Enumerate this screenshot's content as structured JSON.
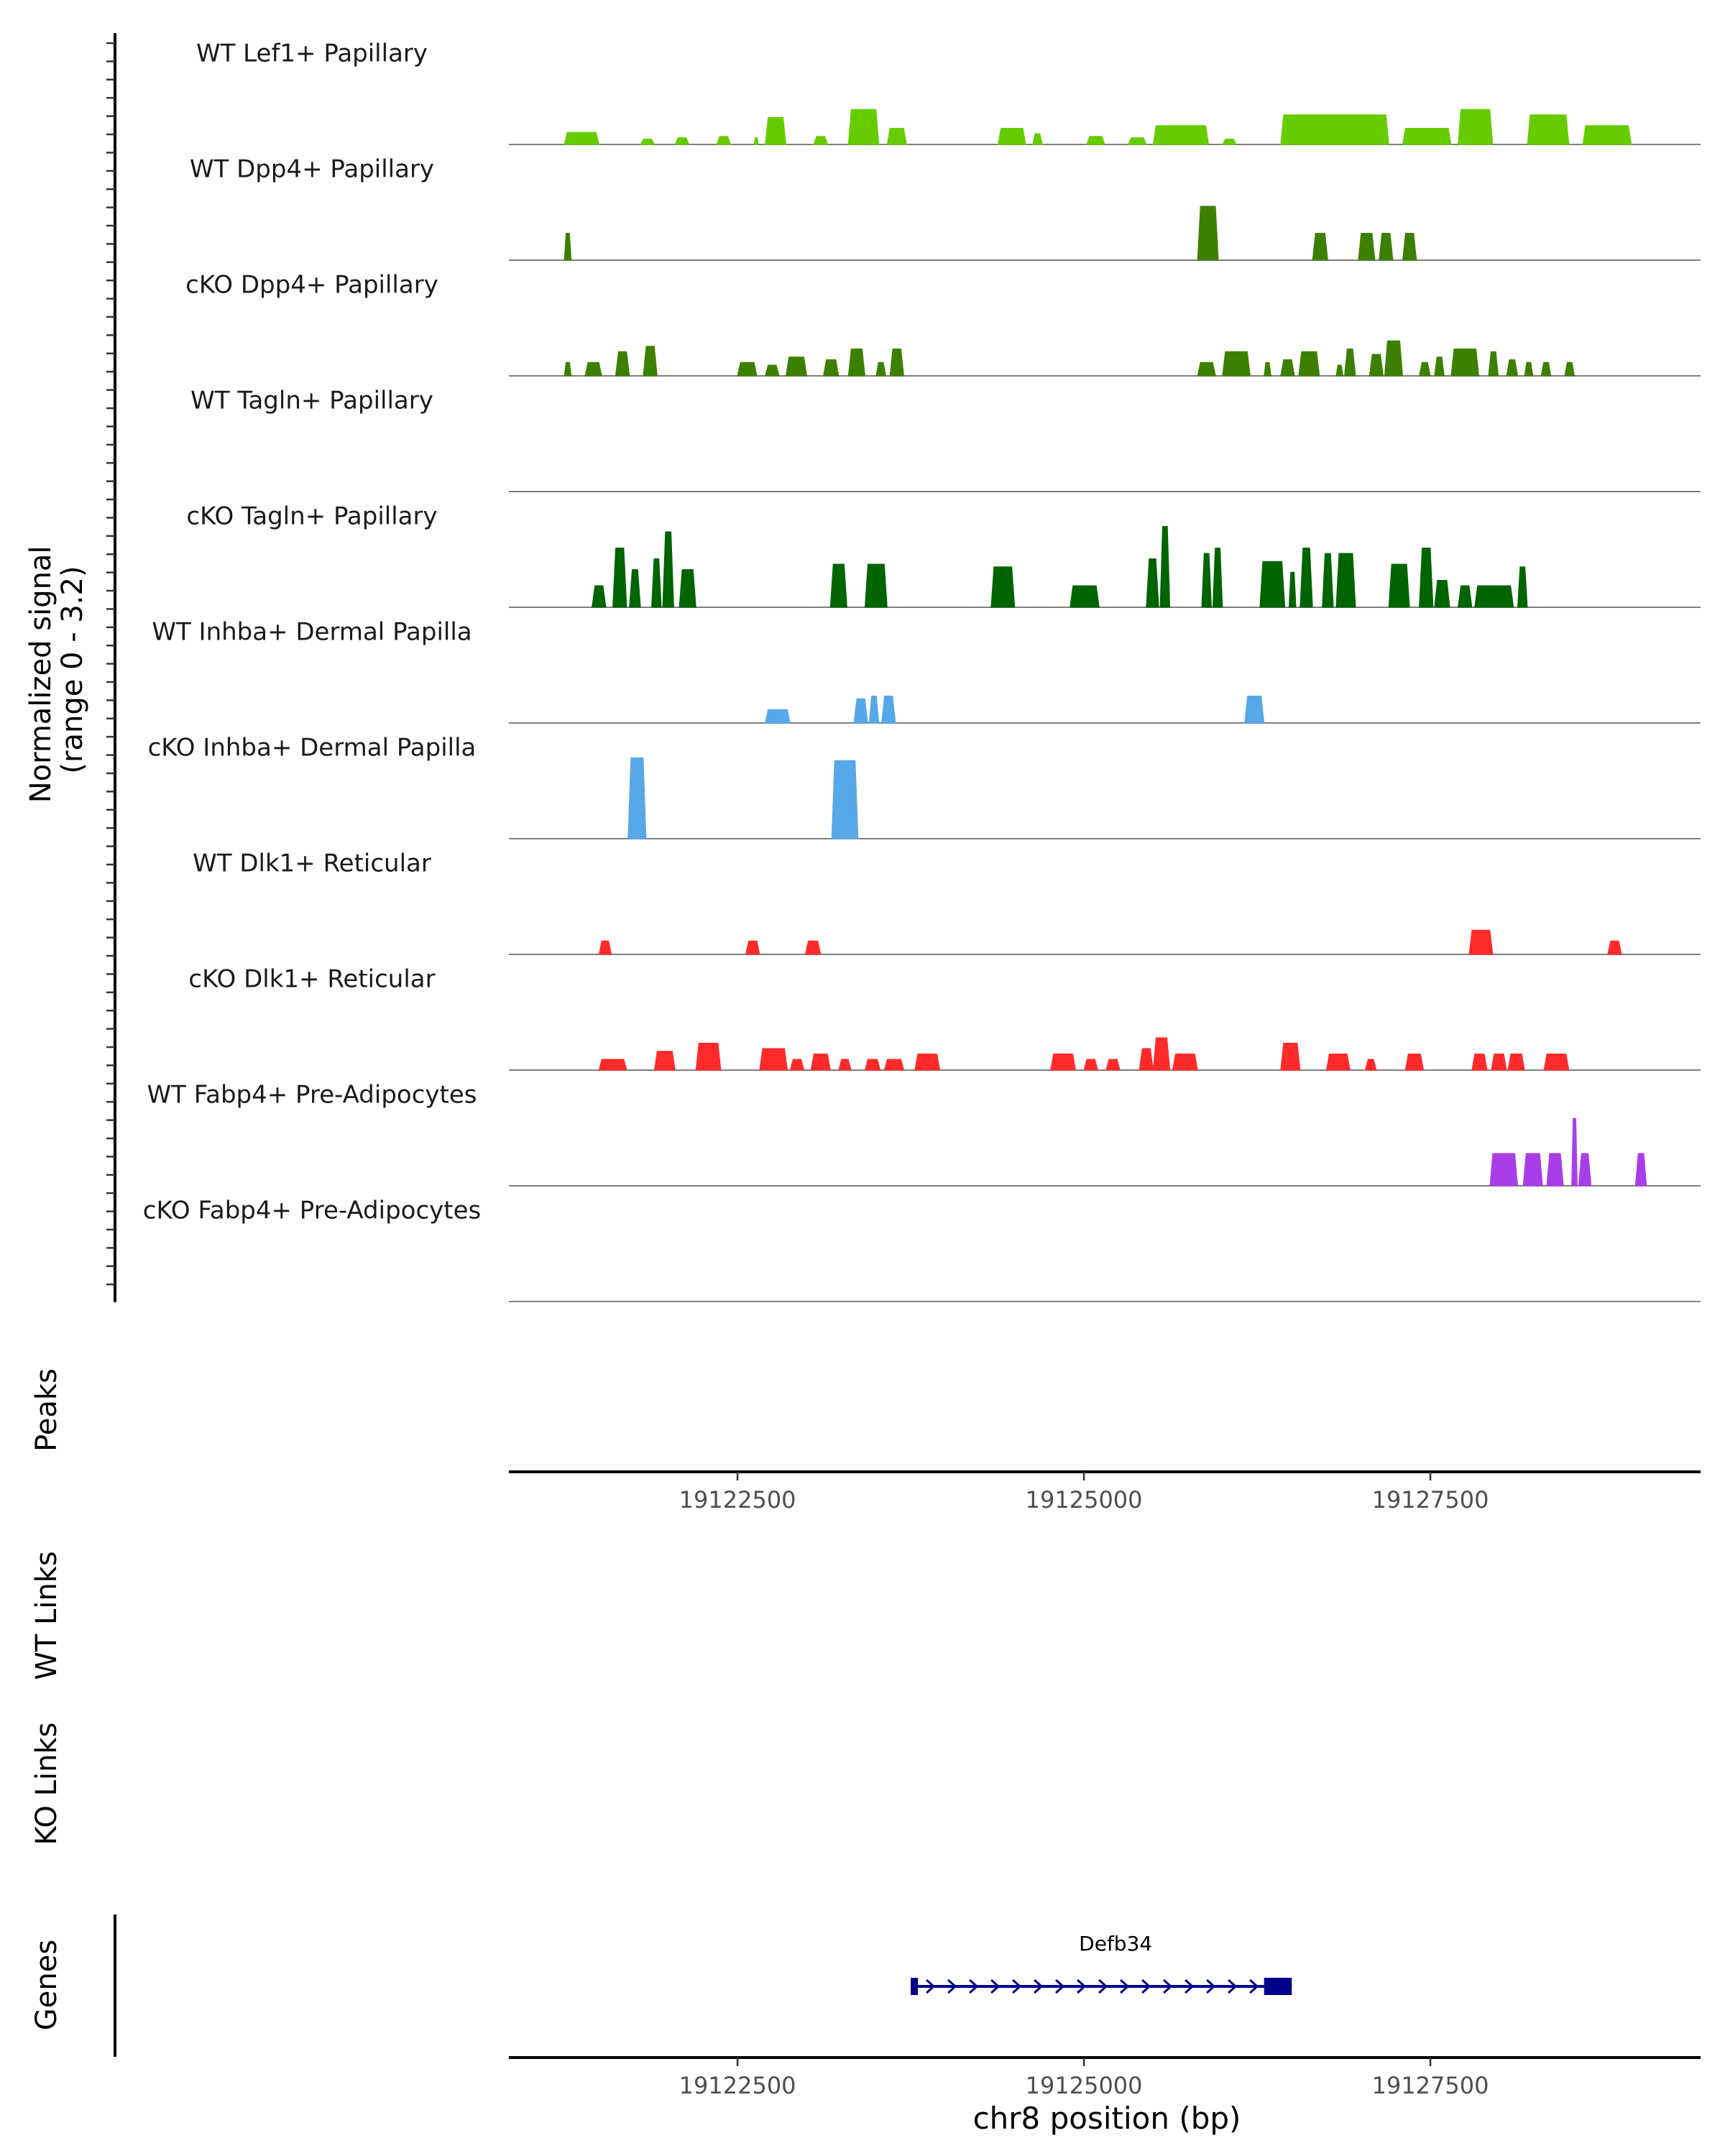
{
  "chart_data": {
    "type": "area",
    "title": "",
    "y_axis_label_line1": "Normalized signal",
    "y_axis_label_line2": "(range 0 - 3.2)",
    "y_range": [
      0,
      3.2
    ],
    "x_range": [
      19120850,
      19129450
    ],
    "xlabel": "chr8 position (bp)",
    "x_ticks": [
      19122500,
      19125000,
      19127500
    ],
    "x_tick_labels": [
      "19122500",
      "19125000",
      "19127500"
    ],
    "side_labels": {
      "peaks": "Peaks",
      "wt_links": "WT Links",
      "ko_links": "KO Links",
      "genes": "Genes"
    },
    "tracks": [
      {
        "name": "WT Lef1+ Papillary",
        "color": "#66cc00",
        "peaks": [
          [
            19121250,
            19121500,
            0.45
          ],
          [
            19121800,
            19121900,
            0.2
          ],
          [
            19122050,
            19122150,
            0.25
          ],
          [
            19122350,
            19122450,
            0.3
          ],
          [
            19122620,
            19122650,
            0.25
          ],
          [
            19122700,
            19122850,
            1.0
          ],
          [
            19123050,
            19123150,
            0.3
          ],
          [
            19123300,
            19123520,
            1.3
          ],
          [
            19123580,
            19123720,
            0.6
          ],
          [
            19124380,
            19124580,
            0.6
          ],
          [
            19124630,
            19124700,
            0.4
          ],
          [
            19125020,
            19125150,
            0.3
          ],
          [
            19125320,
            19125450,
            0.25
          ],
          [
            19125500,
            19125900,
            0.7
          ],
          [
            19126000,
            19126100,
            0.2
          ],
          [
            19126420,
            19127200,
            1.1
          ],
          [
            19127300,
            19127650,
            0.6
          ],
          [
            19127700,
            19127950,
            1.3
          ],
          [
            19128200,
            19128500,
            1.1
          ],
          [
            19128600,
            19128950,
            0.7
          ]
        ]
      },
      {
        "name": "WT Dpp4+ Papillary",
        "color": "#3d8000",
        "peaks": [
          [
            19121250,
            19121300,
            1.0
          ],
          [
            19125820,
            19125970,
            2.0
          ],
          [
            19126650,
            19126760,
            1.0
          ],
          [
            19126980,
            19127100,
            1.0
          ],
          [
            19127130,
            19127230,
            1.0
          ],
          [
            19127300,
            19127400,
            1.0
          ]
        ]
      },
      {
        "name": "cKO Dpp4+ Papillary",
        "color": "#3d8000",
        "peaks": [
          [
            19121250,
            19121300,
            0.5
          ],
          [
            19121400,
            19121520,
            0.5
          ],
          [
            19121620,
            19121720,
            0.9
          ],
          [
            19121820,
            19121920,
            1.1
          ],
          [
            19122500,
            19122640,
            0.5
          ],
          [
            19122700,
            19122800,
            0.4
          ],
          [
            19122850,
            19123000,
            0.7
          ],
          [
            19123120,
            19123230,
            0.6
          ],
          [
            19123300,
            19123420,
            1.0
          ],
          [
            19123500,
            19123570,
            0.5
          ],
          [
            19123600,
            19123700,
            1.0
          ],
          [
            19125820,
            19125950,
            0.5
          ],
          [
            19126000,
            19126200,
            0.9
          ],
          [
            19126300,
            19126350,
            0.5
          ],
          [
            19126420,
            19126520,
            0.6
          ],
          [
            19126550,
            19126700,
            0.9
          ],
          [
            19126820,
            19126870,
            0.4
          ],
          [
            19126880,
            19126960,
            1.0
          ],
          [
            19127060,
            19127160,
            0.8
          ],
          [
            19127170,
            19127300,
            1.3
          ],
          [
            19127420,
            19127500,
            0.5
          ],
          [
            19127530,
            19127600,
            0.7
          ],
          [
            19127650,
            19127850,
            1.0
          ],
          [
            19127920,
            19127990,
            0.9
          ],
          [
            19128050,
            19128130,
            0.6
          ],
          [
            19128180,
            19128240,
            0.5
          ],
          [
            19128300,
            19128370,
            0.5
          ],
          [
            19128470,
            19128540,
            0.5
          ]
        ]
      },
      {
        "name": "WT Tagln+ Papillary",
        "color": "#006400",
        "peaks": []
      },
      {
        "name": "cKO Tagln+ Papillary",
        "color": "#006400",
        "peaks": [
          [
            19121450,
            19121550,
            0.8
          ],
          [
            19121600,
            19121700,
            2.2
          ],
          [
            19121720,
            19121800,
            1.4
          ],
          [
            19121880,
            19121950,
            1.8
          ],
          [
            19121960,
            19122040,
            2.8
          ],
          [
            19122080,
            19122200,
            1.4
          ],
          [
            19123170,
            19123290,
            1.6
          ],
          [
            19123420,
            19123580,
            1.6
          ],
          [
            19124330,
            19124500,
            1.5
          ],
          [
            19124900,
            19125110,
            0.8
          ],
          [
            19125450,
            19125540,
            1.8
          ],
          [
            19125550,
            19125620,
            3.0
          ],
          [
            19125850,
            19125920,
            2.0
          ],
          [
            19125930,
            19126000,
            2.2
          ],
          [
            19126270,
            19126450,
            1.7
          ],
          [
            19126480,
            19126530,
            1.3
          ],
          [
            19126560,
            19126650,
            2.2
          ],
          [
            19126720,
            19126800,
            2.0
          ],
          [
            19126820,
            19126960,
            2.0
          ],
          [
            19127200,
            19127350,
            1.6
          ],
          [
            19127420,
            19127520,
            2.2
          ],
          [
            19127530,
            19127640,
            1.0
          ],
          [
            19127700,
            19127800,
            0.8
          ],
          [
            19127820,
            19128100,
            0.8
          ],
          [
            19128130,
            19128200,
            1.5
          ]
        ]
      },
      {
        "name": "WT Inhba+ Dermal Papilla",
        "color": "#57a8e8",
        "peaks": [
          [
            19122700,
            19122880,
            0.5
          ],
          [
            19123340,
            19123440,
            0.9
          ],
          [
            19123450,
            19123520,
            1.0
          ],
          [
            19123540,
            19123640,
            1.0
          ],
          [
            19126160,
            19126300,
            1.0
          ]
        ]
      },
      {
        "name": "cKO Inhba+ Dermal Papilla",
        "color": "#57a8e8",
        "peaks": [
          [
            19121710,
            19121840,
            3.0
          ],
          [
            19123180,
            19123370,
            2.9
          ]
        ]
      },
      {
        "name": "WT Dlk1+ Reticular",
        "color": "#ff2a2a",
        "peaks": [
          [
            19121500,
            19121590,
            0.5
          ],
          [
            19122560,
            19122660,
            0.5
          ],
          [
            19122990,
            19123100,
            0.5
          ],
          [
            19127780,
            19127950,
            0.9
          ],
          [
            19128780,
            19128880,
            0.5
          ]
        ]
      },
      {
        "name": "cKO Dlk1+ Reticular",
        "color": "#ff2a2a",
        "peaks": [
          [
            19121500,
            19121700,
            0.4
          ],
          [
            19121900,
            19122050,
            0.7
          ],
          [
            19122200,
            19122380,
            1.0
          ],
          [
            19122660,
            19122860,
            0.8
          ],
          [
            19122880,
            19122980,
            0.4
          ],
          [
            19123030,
            19123170,
            0.6
          ],
          [
            19123230,
            19123320,
            0.4
          ],
          [
            19123420,
            19123530,
            0.4
          ],
          [
            19123560,
            19123700,
            0.4
          ],
          [
            19123780,
            19123960,
            0.6
          ],
          [
            19124760,
            19124940,
            0.6
          ],
          [
            19125000,
            19125100,
            0.4
          ],
          [
            19125160,
            19125260,
            0.4
          ],
          [
            19125400,
            19125500,
            0.8
          ],
          [
            19125500,
            19125620,
            1.2
          ],
          [
            19125640,
            19125820,
            0.6
          ],
          [
            19126420,
            19126560,
            1.0
          ],
          [
            19126750,
            19126920,
            0.6
          ],
          [
            19127030,
            19127110,
            0.4
          ],
          [
            19127320,
            19127450,
            0.6
          ],
          [
            19127800,
            19127910,
            0.6
          ],
          [
            19127940,
            19128050,
            0.6
          ],
          [
            19128060,
            19128180,
            0.6
          ],
          [
            19128320,
            19128500,
            0.6
          ]
        ]
      },
      {
        "name": "WT Fabp4+ Pre-Adipocytes",
        "color": "#a93ee8",
        "peaks": [
          [
            19127930,
            19128130,
            1.2
          ],
          [
            19128170,
            19128310,
            1.2
          ],
          [
            19128340,
            19128460,
            1.2
          ],
          [
            19128520,
            19128560,
            2.5
          ],
          [
            19128570,
            19128660,
            1.2
          ],
          [
            19128980,
            19129060,
            1.2
          ]
        ]
      },
      {
        "name": "cKO Fabp4+ Pre-Adipocytes",
        "color": "#a93ee8",
        "peaks": []
      }
    ],
    "gene": {
      "name": "Defb34",
      "start": 19123750,
      "end": 19126500,
      "exon_start": 19126300,
      "color": "#00008b"
    }
  }
}
